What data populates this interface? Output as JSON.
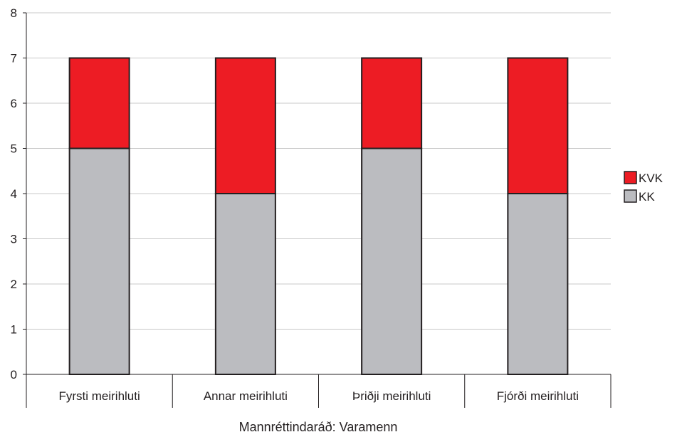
{
  "chart_data": {
    "type": "bar",
    "stacked": true,
    "title": "",
    "caption": "Mannréttindaráð: Varamenn",
    "xlabel": "",
    "ylabel": "",
    "categories": [
      "Fyrsti meirihluti",
      "Annar meirihluti",
      "Þriðji meirihluti",
      "Fjórði meirihluti"
    ],
    "series": [
      {
        "name": "KK",
        "values": [
          5,
          4,
          5,
          4
        ],
        "color": "#bbbcc0"
      },
      {
        "name": "KVK",
        "values": [
          2,
          3,
          2,
          3
        ],
        "color": "#ed1c24"
      }
    ],
    "ylim": [
      0,
      8
    ],
    "yticks": [
      0,
      1,
      2,
      3,
      4,
      5,
      6,
      7,
      8
    ],
    "grid": true,
    "legend": {
      "position": "right",
      "entries": [
        "KVK",
        "KK"
      ]
    }
  }
}
